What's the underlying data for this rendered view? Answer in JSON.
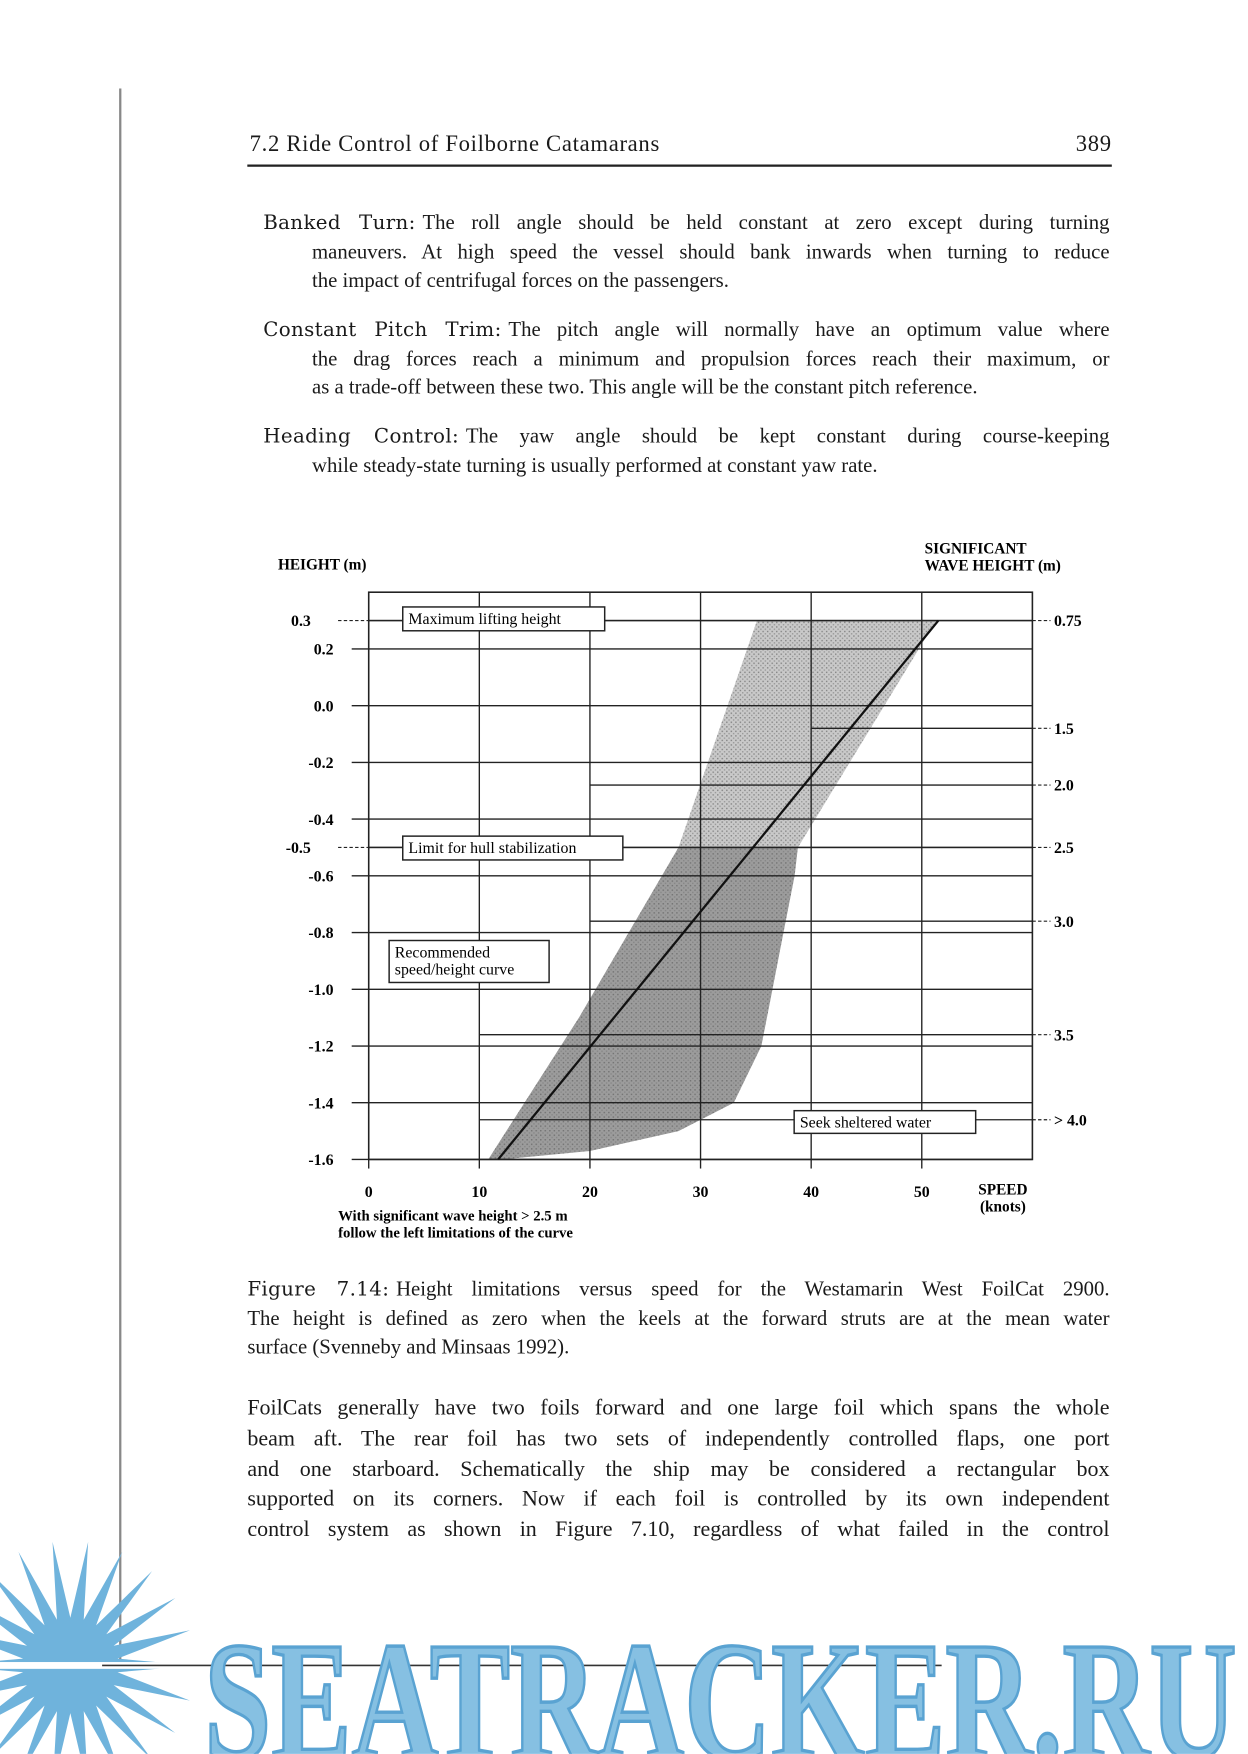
{
  "header": {
    "title": "7.2 Ride Control of Foilborne Catamarans",
    "page": "389"
  },
  "paragraphs": [
    {
      "term": "Banked Turn:",
      "lines": [
        "The roll angle should be held constant at zero except during turning",
        "maneuvers. At high speed the vessel should bank inwards when turning to reduce",
        "the impact of centrifugal forces on the passengers."
      ]
    },
    {
      "term": "Constant Pitch Trim:",
      "lines": [
        "The pitch angle will normally have an optimum value where",
        "the drag forces reach a minimum and propulsion forces reach their maximum, or",
        "as a trade-off between these two. This angle will be the constant pitch reference."
      ]
    },
    {
      "term": "Heading Control:",
      "lines": [
        "The yaw angle should be kept constant during course-keeping",
        "while steady-state turning is usually performed at constant yaw rate."
      ]
    }
  ],
  "chart_data": {
    "type": "area",
    "y_label": "HEIGHT (m)",
    "y2_label": [
      "SIGNIFICANT",
      "WAVE HEIGHT (m)"
    ],
    "x_label": [
      "SPEED",
      "(knots)"
    ],
    "note": [
      "With significant wave height > 2.5 m",
      "follow the left limitations of the curve"
    ],
    "xlim": [
      0,
      60
    ],
    "xticks": [
      0,
      10,
      20,
      30,
      40,
      50
    ],
    "ylim": [
      -1.6,
      0.4
    ],
    "yticks": [
      0.3,
      0.2,
      {
        "value": 0,
        "label": "0.0"
      },
      -0.2,
      -0.4,
      -0.5,
      -0.6,
      -0.8,
      {
        "value": -1,
        "label": "-1.0"
      },
      -1.2,
      -1.4,
      -1.6
    ],
    "grid": true,
    "right_scale": [
      {
        "label": "0.75",
        "height": 0.3,
        "from_speed": 0
      },
      {
        "label": "1.5",
        "height": -0.08,
        "from_speed": 40
      },
      {
        "label": "2.0",
        "height": -0.28,
        "from_speed": 20
      },
      {
        "label": "2.5",
        "height": -0.5,
        "from_speed": 0
      },
      {
        "label": "3.0",
        "height": -0.76,
        "from_speed": 20
      },
      {
        "label": "3.5",
        "height": -1.16,
        "from_speed": 10
      },
      {
        "label": "> 4.0",
        "height": -1.46,
        "from_speed": 10
      }
    ],
    "regions": [
      {
        "color": "#c9c9c9",
        "speed": [
          35.1,
          51.3,
          38.8,
          28
        ],
        "height": [
          0.3,
          0.3,
          -0.5,
          -0.5
        ]
      },
      {
        "color": "#9c9c9c",
        "speed": [
          28,
          38.8,
          38.5,
          37.5,
          36.5,
          35.5,
          33,
          28,
          20,
          12,
          10.8,
          19
        ],
        "height": [
          -0.5,
          -0.5,
          -0.6,
          -0.8,
          -1.0,
          -1.2,
          -1.4,
          -1.5,
          -1.57,
          -1.6,
          -1.6,
          -1.1
        ]
      }
    ],
    "curve": {
      "speed": [
        11.7,
        51.5
      ],
      "height": [
        -1.6,
        0.3
      ]
    },
    "annotations": [
      [
        "Maximum lifting height"
      ],
      [
        "Limit for hull stabilization"
      ],
      [
        "Recommended",
        "speed/height curve"
      ],
      [
        "Seek sheltered water"
      ]
    ]
  },
  "caption": {
    "term": "Figure 7.14:",
    "lines": [
      "Height limitations versus speed for the Westamarin West FoilCat 2900.",
      "The height is defined as zero when the keels at the forward struts are at the mean water",
      "surface (Svenneby and Minsaas 1992)."
    ]
  },
  "body": [
    "FoilCats generally have two foils forward and one large foil which spans the whole",
    "beam aft. The rear foil has two sets of independently controlled flaps, one port",
    "and one starboard. Schematically the ship may be considered a rectangular box",
    "supported on its corners. Now if each foil is controlled by its own independent",
    "control system as shown in Figure 7.10, regardless of what failed in the control"
  ],
  "watermark": "SEATRACKER.RU"
}
